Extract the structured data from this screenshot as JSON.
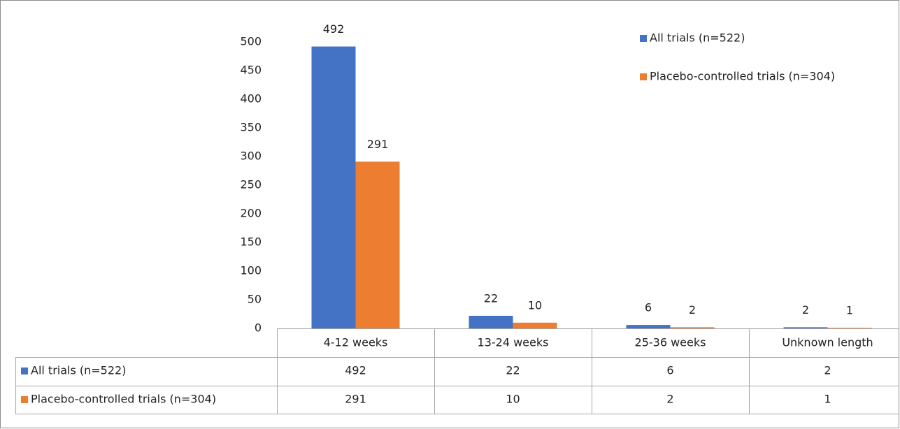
{
  "chart_data": {
    "type": "bar",
    "categories": [
      "4-12 weeks",
      "13-24 weeks",
      "25-36 weeks",
      "Unknown length"
    ],
    "series": [
      {
        "name": "All trials (n=522)",
        "color": "#4472c4",
        "values": [
          492,
          22,
          6,
          2
        ]
      },
      {
        "name": "Placebo-controlled trials (n=304)",
        "color": "#ed7d31",
        "values": [
          291,
          10,
          2,
          1
        ]
      }
    ],
    "ylim": [
      0,
      500
    ],
    "yticks": [
      0,
      50,
      100,
      150,
      200,
      250,
      300,
      350,
      400,
      450,
      500
    ],
    "grid": false,
    "legend": "top-right",
    "data_table": true
  }
}
